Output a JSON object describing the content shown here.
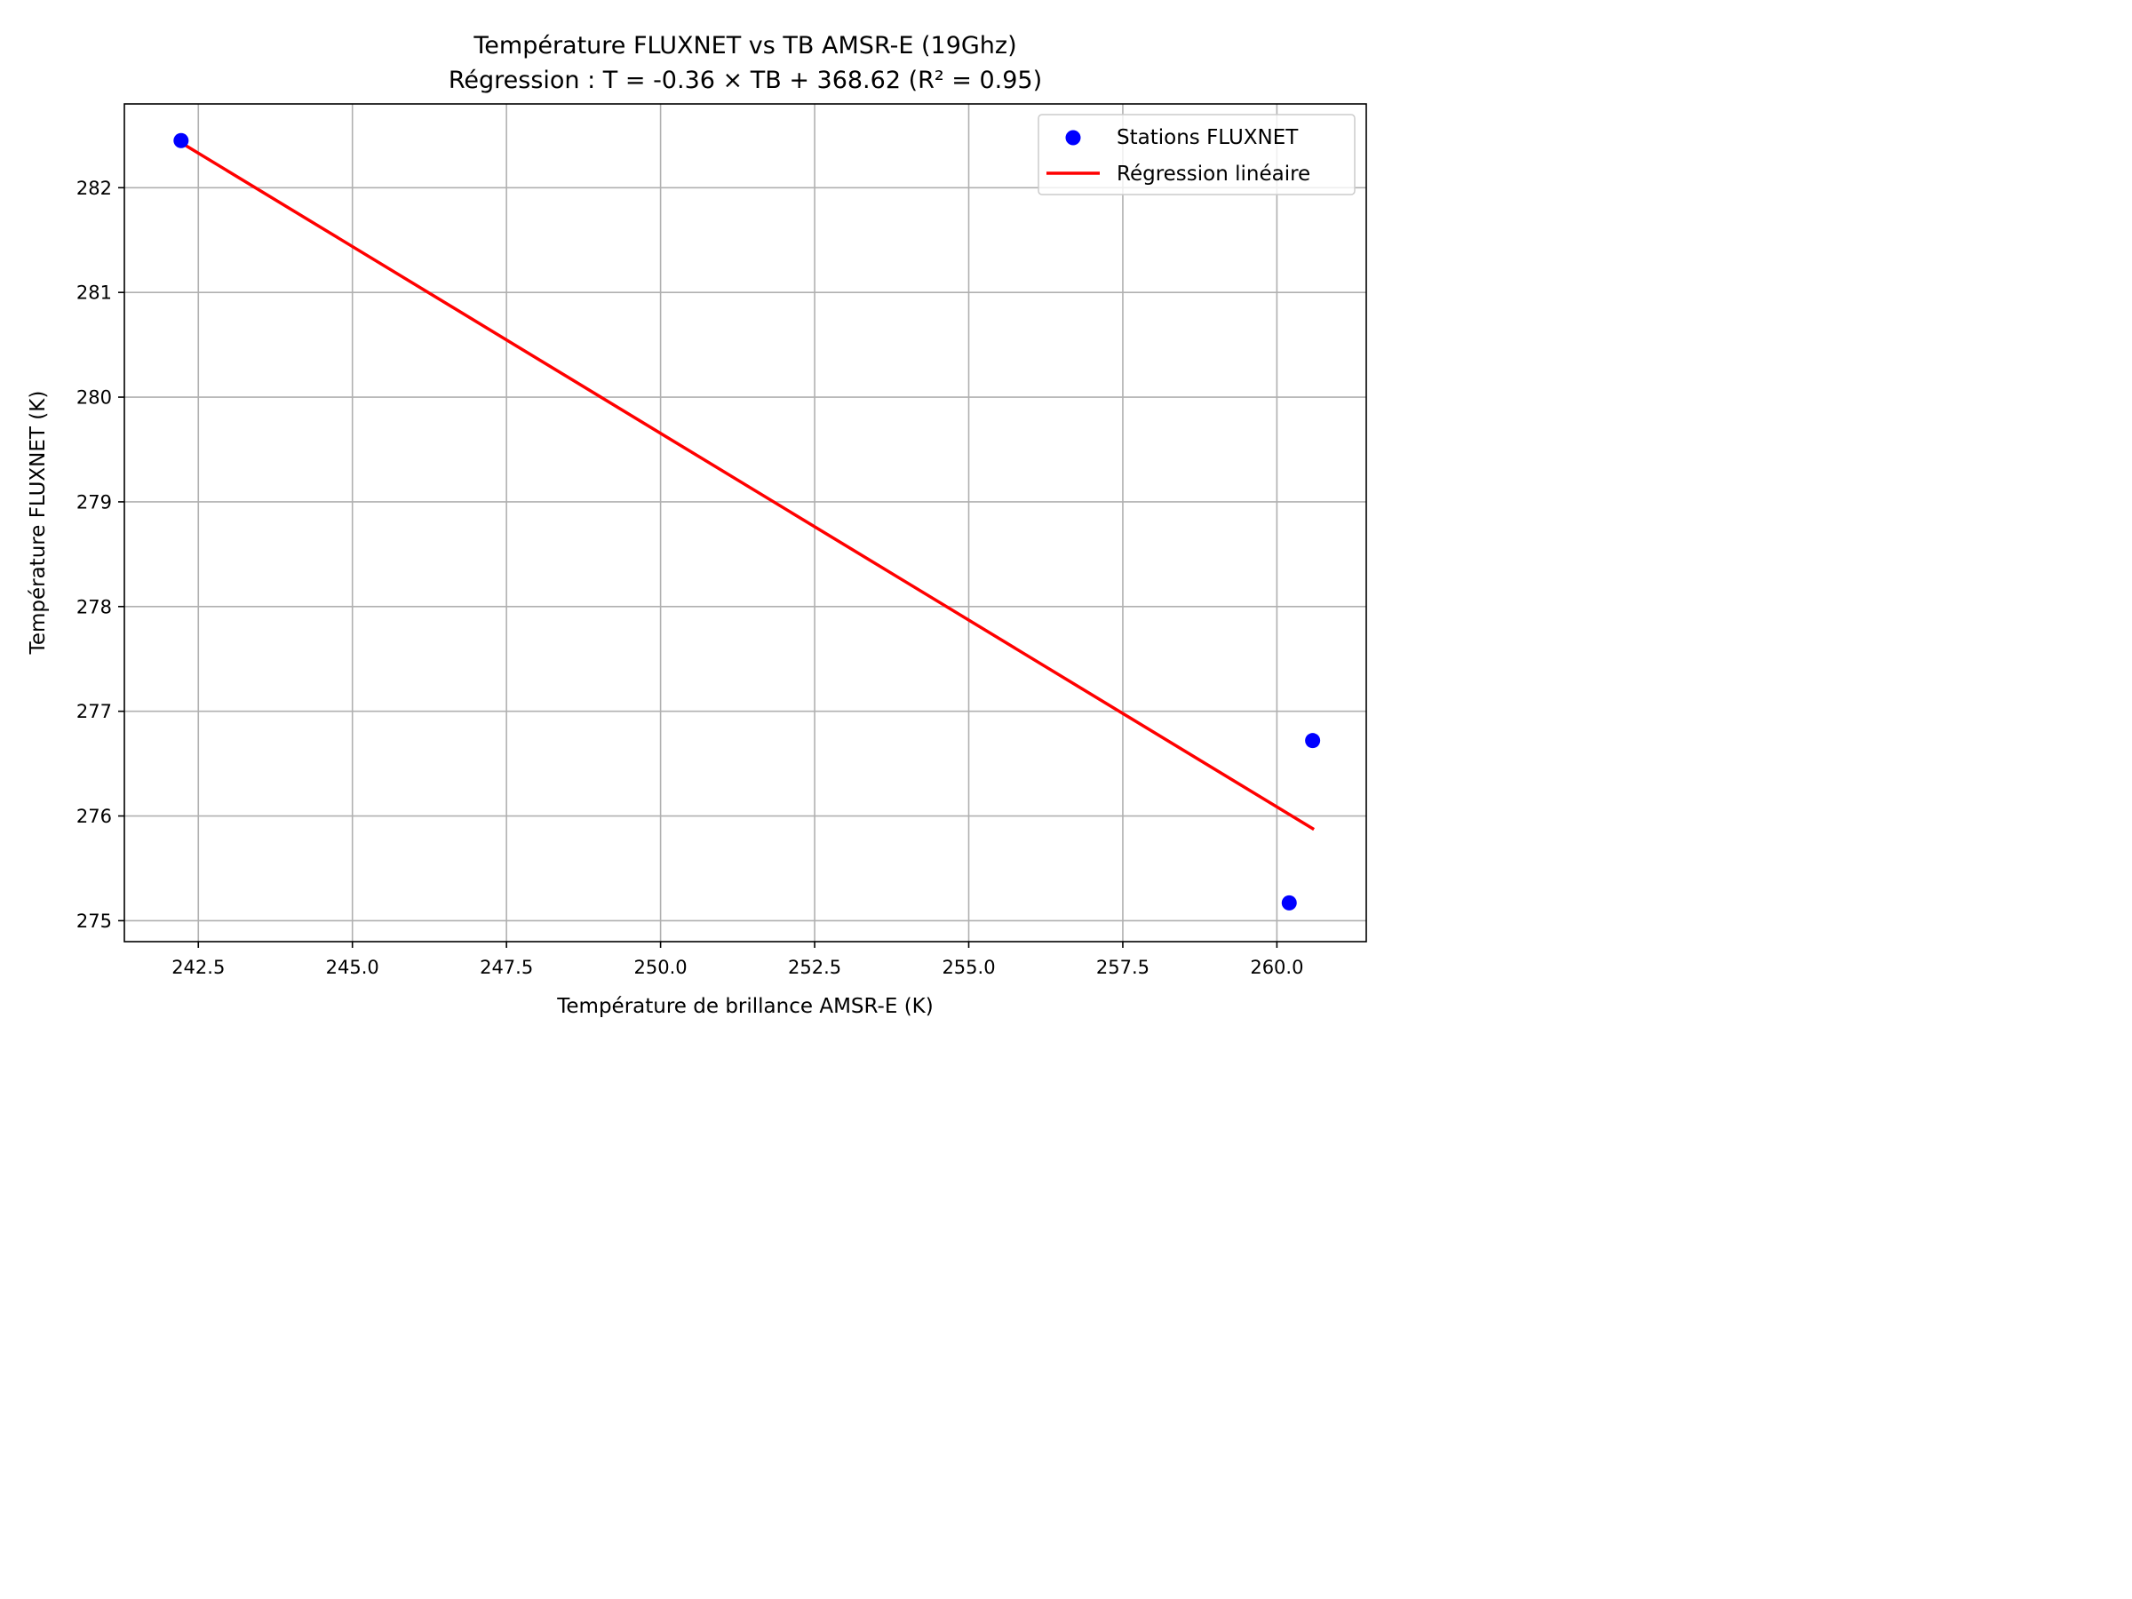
{
  "chart_data": {
    "type": "scatter",
    "title": "Température FLUXNET vs TB AMSR-E (19Ghz)",
    "subtitle": "Régression : T = -0.36 × TB + 368.62 (R² = 0.95)",
    "xlabel": "Température de brillance AMSR-E (K)",
    "ylabel": "Température FLUXNET (K)",
    "xlim": [
      241.3,
      261.45
    ],
    "ylim": [
      274.8,
      282.8
    ],
    "x_ticks": [
      242.5,
      245.0,
      247.5,
      250.0,
      252.5,
      255.0,
      257.5,
      260.0
    ],
    "x_tick_labels": [
      "242.5",
      "245.0",
      "247.5",
      "250.0",
      "252.5",
      "255.0",
      "257.5",
      "260.0"
    ],
    "y_ticks": [
      275,
      276,
      277,
      278,
      279,
      280,
      281,
      282
    ],
    "y_tick_labels": [
      "275",
      "276",
      "277",
      "278",
      "279",
      "280",
      "281",
      "282"
    ],
    "grid": true,
    "legend_position": "top-right",
    "series": [
      {
        "name": "Stations FLUXNET",
        "type": "scatter",
        "color": "#0000ff",
        "points": [
          {
            "x": 242.22,
            "y": 282.45
          },
          {
            "x": 260.2,
            "y": 275.17
          },
          {
            "x": 260.58,
            "y": 276.72
          }
        ]
      },
      {
        "name": "Régression linéaire",
        "type": "line",
        "color": "#ff0000",
        "points": [
          {
            "x": 242.22,
            "y": 282.43
          },
          {
            "x": 260.58,
            "y": 275.88
          }
        ]
      }
    ]
  }
}
